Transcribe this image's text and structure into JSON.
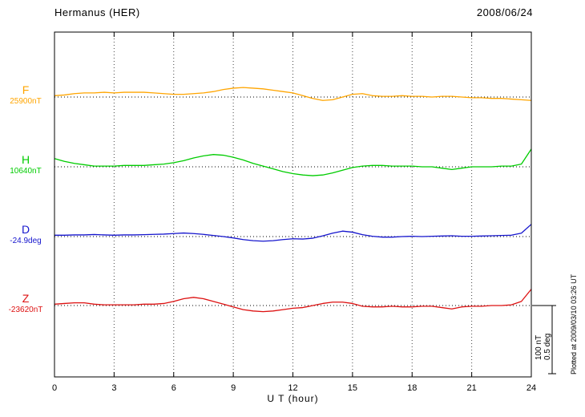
{
  "header": {
    "title": "Hermanus (HER)",
    "date": "2008/06/24"
  },
  "axis": {
    "xlabel": "U T (hour)"
  },
  "scale_text": {
    "line1": "100 nT",
    "line2": "0.5 deg"
  },
  "footer": {
    "plotted_at": "Plotted at 2009/03/10 03:26 UT"
  },
  "chart_data": {
    "type": "line",
    "title": "Hermanus (HER) magnetogram",
    "subtitle": "2008/06/24",
    "xlabel": "U T (hour)",
    "xlim": [
      0,
      24
    ],
    "x_ticks": [
      0,
      3,
      6,
      9,
      12,
      15,
      18,
      21,
      24
    ],
    "grid": "vertical dotted gridlines at each 3-hour tick; dotted horizontal baseline per channel",
    "legend_position": "left channel labels",
    "scale_bar": {
      "nT": 100,
      "deg": 0.5,
      "px": 85
    },
    "x": [
      0,
      0.5,
      1,
      1.5,
      2,
      2.5,
      3,
      3.5,
      4,
      4.5,
      5,
      5.5,
      6,
      6.5,
      7,
      7.5,
      8,
      8.5,
      9,
      9.5,
      10,
      10.5,
      11,
      11.5,
      12,
      12.5,
      13,
      13.5,
      14,
      14.5,
      15,
      15.5,
      16,
      16.5,
      17,
      17.5,
      18,
      18.5,
      19,
      19.5,
      20,
      20.5,
      21,
      21.5,
      22,
      22.5,
      23,
      23.5,
      24
    ],
    "series": [
      {
        "name": "F",
        "unit": "nT",
        "base_label": "25900nT",
        "base_value": 25900,
        "color": "#FFA500",
        "offsets": [
          2,
          3,
          5,
          6,
          6,
          7,
          6,
          7,
          7,
          7,
          6,
          5,
          4,
          4,
          5,
          6,
          8,
          11,
          13,
          14,
          13,
          12,
          10,
          8,
          6,
          2,
          -2,
          -5,
          -4,
          0,
          4,
          5,
          2,
          1,
          1,
          2,
          1,
          1,
          0,
          1,
          1,
          0,
          -1,
          -1,
          -2,
          -2,
          -3,
          -4,
          -5
        ]
      },
      {
        "name": "H",
        "unit": "nT",
        "base_label": "10640nT",
        "base_value": 10640,
        "color": "#00CC00",
        "offsets": [
          12,
          8,
          5,
          3,
          1,
          1,
          1,
          2,
          2,
          2,
          3,
          4,
          6,
          9,
          13,
          16,
          18,
          17,
          14,
          10,
          5,
          1,
          -3,
          -7,
          -10,
          -12,
          -13,
          -12,
          -9,
          -5,
          -1,
          1,
          2,
          2,
          1,
          1,
          1,
          0,
          0,
          -2,
          -4,
          -2,
          0,
          0,
          0,
          1,
          1,
          4,
          26
        ]
      },
      {
        "name": "D",
        "unit": "deg",
        "base_label": "-24.9deg",
        "base_value": -24.9,
        "color": "#1515CD",
        "offsets": [
          0.01,
          0.01,
          0.012,
          0.012,
          0.015,
          0.012,
          0.01,
          0.012,
          0.012,
          0.014,
          0.016,
          0.018,
          0.022,
          0.026,
          0.022,
          0.016,
          0.008,
          0,
          -0.01,
          -0.022,
          -0.03,
          -0.034,
          -0.03,
          -0.022,
          -0.016,
          -0.018,
          -0.012,
          0.005,
          0.025,
          0.04,
          0.032,
          0.014,
          0.002,
          -0.004,
          -0.004,
          0,
          0.002,
          0,
          0.002,
          0.004,
          0.006,
          0.002,
          0.002,
          0.004,
          0.006,
          0.008,
          0.01,
          0.025,
          0.09
        ]
      },
      {
        "name": "Z",
        "unit": "nT",
        "base_label": "-23620nT",
        "base_value": -23620,
        "color": "#DD1111",
        "offsets": [
          2,
          3,
          4,
          4,
          2,
          1,
          1,
          1,
          1,
          2,
          2,
          3,
          6,
          10,
          12,
          10,
          6,
          2,
          -2,
          -6,
          -8,
          -9,
          -8,
          -6,
          -4,
          -3,
          0,
          3,
          5,
          5,
          3,
          -1,
          -2,
          -2,
          -1,
          -2,
          -2,
          -1,
          -1,
          -3,
          -5,
          -2,
          -1,
          -1,
          0,
          0,
          1,
          6,
          24
        ]
      }
    ]
  }
}
